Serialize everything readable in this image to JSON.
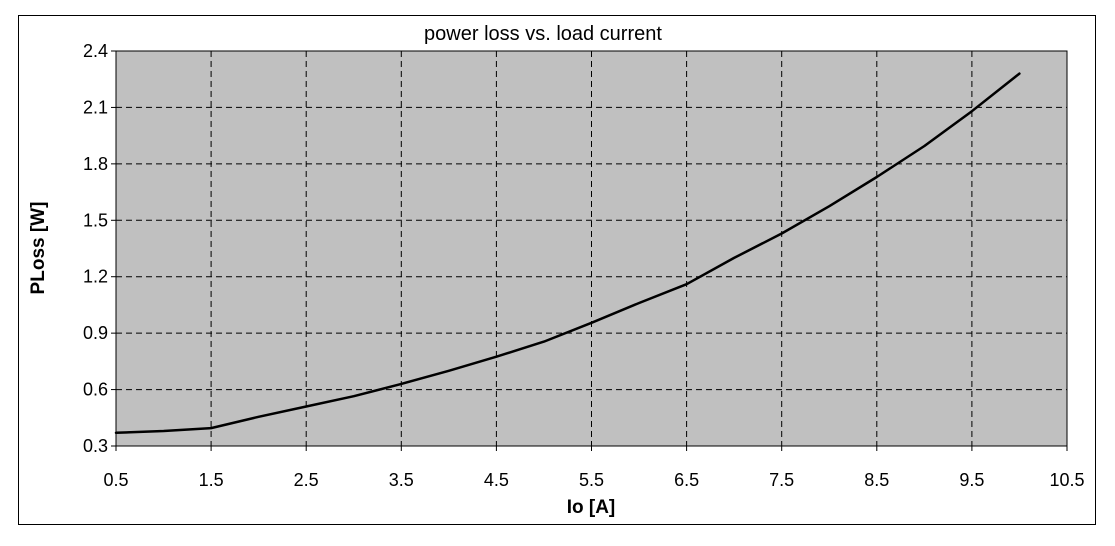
{
  "chart_data": {
    "type": "line",
    "title": "power loss vs. load current",
    "xlabel": "Io [A]",
    "ylabel": "PLoss [W]",
    "xlim": [
      0.5,
      10.5
    ],
    "ylim": [
      0.3,
      2.4
    ],
    "x_ticks": [
      "0.5",
      "1.5",
      "2.5",
      "3.5",
      "4.5",
      "5.5",
      "6.5",
      "7.5",
      "8.5",
      "9.5",
      "10.5"
    ],
    "y_ticks": [
      "0.3",
      "0.6",
      "0.9",
      "1.2",
      "1.5",
      "1.8",
      "2.1",
      "2.4"
    ],
    "grid": true,
    "plot_background": "#c0c0c0",
    "line_color": "#000000",
    "series": [
      {
        "x": [
          0.5,
          1.0,
          1.5,
          2.0,
          2.5,
          3.0,
          3.5,
          4.0,
          4.5,
          5.0,
          5.5,
          6.0,
          6.5,
          7.0,
          7.5,
          8.0,
          8.5,
          9.0,
          9.5,
          10.0
        ],
        "y": [
          0.37,
          0.38,
          0.395,
          0.455,
          0.51,
          0.565,
          0.63,
          0.7,
          0.775,
          0.855,
          0.955,
          1.06,
          1.16,
          1.3,
          1.43,
          1.575,
          1.73,
          1.895,
          2.08,
          2.28
        ]
      }
    ]
  }
}
